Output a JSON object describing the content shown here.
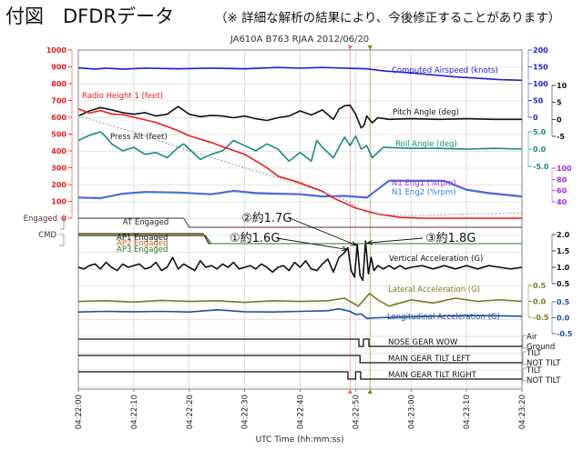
{
  "header": {
    "title": "付図　DFDRデータ",
    "note": "（※ 詳細な解析の結果により、今後修正することがあります）"
  },
  "chart_data": {
    "type": "line",
    "title": "JA610A  B763  RJAA  2012/06/20",
    "xlabel": "UTC Time (hh:mm:ss)",
    "x_range_seconds": [
      0,
      80
    ],
    "x_ticks": [
      "04:22:00",
      "04:22:10",
      "04:22:20",
      "04:22:30",
      "04:22:40",
      "04:22:50",
      "04:23:00",
      "04:23:10",
      "04:23:20"
    ],
    "grid": true,
    "event_markers": [
      {
        "name": "marker-1",
        "time_s": 49.0,
        "color": "#f07070"
      },
      {
        "name": "marker-2",
        "time_s": 52.6,
        "color": "#8a7a10"
      }
    ],
    "axes": [
      {
        "name": "radio-height-axis",
        "side": "left",
        "color": "#e81c1c",
        "range": [
          0,
          1000
        ],
        "ticks": [
          "0",
          "100",
          "200",
          "300",
          "400",
          "500",
          "600",
          "700",
          "800",
          "900",
          "1000"
        ]
      },
      {
        "name": "airspeed-axis",
        "side": "right",
        "color": "#2020d0",
        "range": [
          0,
          200
        ],
        "ticks": [
          "0",
          "50",
          "100",
          "150",
          "200"
        ]
      },
      {
        "name": "pitch-axis",
        "side": "right",
        "color": "#111111",
        "range": [
          -5,
          10
        ],
        "ticks": [
          "-5",
          "0",
          "5",
          "10"
        ]
      },
      {
        "name": "roll-axis",
        "side": "right",
        "color": "#1a8a80",
        "range": [
          -5,
          5
        ],
        "ticks": [
          "-5.0",
          "0.0",
          "5.0"
        ]
      },
      {
        "name": "n1-axis",
        "side": "right",
        "color": "#a030e0",
        "range": [
          40,
          100
        ],
        "ticks": [
          "40",
          "60",
          "80",
          "100"
        ]
      },
      {
        "name": "vertical-acc-axis",
        "side": "right",
        "color": "#111111",
        "range": [
          0.5,
          2.0
        ],
        "ticks": [
          "0.5",
          "1.0",
          "1.5",
          "2.0"
        ]
      },
      {
        "name": "lateral-acc-axis",
        "side": "right",
        "color": "#7a7a20",
        "range": [
          -0.5,
          0.5
        ],
        "ticks": [
          "-0.5",
          "0.0",
          "0.5"
        ]
      },
      {
        "name": "longitudinal-acc-axis",
        "side": "right",
        "color": "#1f4fa0",
        "range": [
          -0.5,
          0.5
        ],
        "ticks": [
          "-0.5",
          "0.0",
          "0.5"
        ]
      }
    ],
    "series": [
      {
        "name": "Computed Airspeed (knots)",
        "color": "#2020d0",
        "axis": "airspeed-axis",
        "t": [
          0,
          3,
          5,
          8,
          12,
          18,
          24,
          30,
          36,
          40,
          44,
          48,
          52,
          55,
          60,
          64,
          68,
          72,
          76,
          80
        ],
        "v": [
          147,
          143,
          146,
          143,
          146,
          144,
          146,
          144,
          148,
          146,
          148,
          146,
          144,
          138,
          132,
          126,
          120,
          116,
          112,
          110
        ]
      },
      {
        "name": "Pitch Angle (deg)",
        "color": "#111111",
        "axis": "pitch-axis",
        "t": [
          0,
          2,
          4,
          6,
          8,
          10,
          12,
          14,
          16,
          18,
          20,
          22,
          24,
          26,
          28,
          30,
          32,
          34,
          36,
          38,
          40,
          42,
          44,
          46,
          47,
          48,
          49,
          50,
          51,
          51.5,
          52,
          53,
          54,
          56,
          60,
          65,
          70,
          75,
          80
        ],
        "v": [
          1.0,
          2.5,
          3.5,
          2.8,
          2.0,
          1.5,
          2.0,
          1.0,
          1.5,
          3.8,
          1.5,
          0.8,
          1.2,
          1.0,
          0.5,
          1.0,
          0.2,
          -0.3,
          0.5,
          1.0,
          2.5,
          1.3,
          2.8,
          0.0,
          3.0,
          4.0,
          4.2,
          1.5,
          -2.5,
          -1.8,
          1.0,
          -1.0,
          0.5,
          0.0,
          0.2,
          0.0,
          0.2,
          0.0,
          0.0
        ]
      },
      {
        "name": "Roll Angle (deg)",
        "color": "#1a8a80",
        "axis": "roll-axis",
        "t": [
          0,
          2,
          4,
          5,
          6,
          8,
          10,
          12,
          14,
          16,
          18,
          19,
          20,
          22,
          24,
          26,
          28,
          30,
          32,
          34,
          36,
          38,
          40,
          42,
          43,
          44,
          46,
          47,
          48,
          49,
          50,
          51,
          52,
          53,
          55,
          60,
          65,
          70,
          75,
          80
        ],
        "v": [
          2.5,
          4.0,
          5.0,
          3.5,
          1.5,
          -0.5,
          0.5,
          -1.5,
          -1.0,
          -2.5,
          0.5,
          1.5,
          0.0,
          -3.0,
          -1.5,
          -0.5,
          2.5,
          1.0,
          -0.5,
          1.5,
          0.0,
          -3.5,
          -1.0,
          -3.5,
          2.5,
          0.5,
          -2.5,
          0.5,
          3.5,
          1.0,
          3.8,
          0.0,
          1.0,
          -2.5,
          0.5,
          0.2,
          0.2,
          0.0,
          0.2,
          0.0
        ]
      },
      {
        "name": "N1 Eng1 (%rpm)",
        "color": "#a030e0",
        "axis": "n1-axis",
        "t": [
          0,
          4,
          8,
          12,
          18,
          24,
          28,
          32,
          36,
          40,
          44,
          48,
          52,
          56,
          60,
          66,
          70,
          74,
          80
        ],
        "v": [
          48,
          47,
          55,
          58,
          57,
          54,
          60,
          56,
          55,
          54,
          50,
          51,
          48,
          78,
          78,
          78,
          62,
          56,
          50
        ]
      },
      {
        "name": "N1 Eng2 (%rpm)",
        "color": "#2f7fd8",
        "axis": "n1-axis",
        "t": [
          0,
          4,
          8,
          12,
          18,
          24,
          28,
          32,
          36,
          40,
          44,
          48,
          52,
          56,
          60,
          66,
          70,
          74,
          80
        ],
        "v": [
          47,
          46,
          54,
          57,
          56,
          53,
          59,
          55,
          54,
          53,
          49,
          50,
          47,
          77,
          77,
          77,
          61,
          55,
          49
        ]
      },
      {
        "name": "Radio Height 1 (feet)",
        "color": "#e81c1c",
        "axis": "radio-height-axis",
        "t": [
          0,
          2,
          4,
          6,
          8,
          10,
          14,
          18,
          20,
          24,
          26,
          30,
          34,
          36,
          38,
          40,
          44,
          46,
          48,
          50,
          54,
          58,
          62,
          66,
          70,
          74,
          80
        ],
        "v": [
          650,
          625,
          640,
          620,
          615,
          600,
          570,
          520,
          490,
          450,
          425,
          380,
          300,
          250,
          230,
          210,
          160,
          120,
          90,
          60,
          25,
          5,
          0,
          0,
          0,
          0,
          0
        ]
      },
      {
        "name": "Press Alt (feet)",
        "color": "#999999",
        "axis": "radio-height-axis",
        "t": [
          0,
          10,
          20,
          30,
          40,
          48,
          52,
          56,
          60,
          70,
          80
        ],
        "v": [
          610,
          510,
          400,
          300,
          200,
          110,
          30,
          20,
          15,
          25,
          30
        ]
      },
      {
        "name": "Vertical Acceleration (G)",
        "color": "#111111",
        "axis": "vertical-acc-axis",
        "t": [
          0,
          1,
          2,
          3,
          4,
          5,
          6,
          7,
          8,
          9,
          10,
          11,
          12,
          13,
          14,
          15,
          16,
          17,
          18,
          19,
          20,
          21,
          22,
          23,
          24,
          25,
          26,
          27,
          28,
          29,
          30,
          31,
          32,
          33,
          34,
          35,
          36,
          37,
          38,
          39,
          40,
          41,
          42,
          43,
          44,
          45,
          46,
          47,
          48,
          48.6,
          49.2,
          49.8,
          50.3,
          50.8,
          51.3,
          51.8,
          52.3,
          52.8,
          53.3,
          54,
          55,
          56,
          57,
          58,
          59,
          60,
          62,
          64,
          66,
          68,
          70,
          72,
          74,
          76,
          78,
          80
        ],
        "v": [
          1.0,
          0.95,
          1.05,
          1.1,
          0.95,
          1.15,
          1.0,
          0.9,
          1.1,
          1.0,
          1.05,
          1.1,
          0.95,
          1.0,
          1.15,
          0.9,
          1.0,
          1.3,
          0.95,
          1.1,
          1.0,
          0.9,
          1.2,
          1.0,
          1.05,
          0.95,
          1.1,
          1.0,
          1.15,
          0.95,
          1.0,
          1.05,
          0.95,
          1.1,
          1.0,
          0.85,
          1.0,
          1.05,
          0.9,
          1.15,
          1.0,
          1.2,
          0.95,
          0.9,
          1.1,
          1.25,
          0.85,
          1.3,
          1.45,
          1.6,
          0.9,
          0.7,
          1.7,
          0.75,
          0.6,
          1.8,
          0.8,
          1.3,
          0.9,
          1.05,
          0.95,
          1.05,
          0.95,
          1.05,
          0.95,
          1.0,
          1.05,
          0.95,
          1.05,
          0.95,
          1.05,
          0.95,
          1.05,
          1.0,
          0.95,
          1.0
        ]
      },
      {
        "name": "Lateral Acceleration (G)",
        "color": "#7a7a20",
        "axis": "lateral-acc-axis",
        "t": [
          0,
          5,
          10,
          15,
          20,
          25,
          30,
          35,
          40,
          45,
          48,
          49.5,
          50.5,
          51.5,
          52.5,
          54,
          56,
          60,
          64,
          68,
          72,
          76,
          80
        ],
        "v": [
          0.0,
          0.02,
          -0.02,
          0.03,
          0.0,
          0.02,
          -0.03,
          0.02,
          0.0,
          0.02,
          0.1,
          -0.05,
          -0.15,
          0.05,
          0.25,
          0.05,
          -0.15,
          0.05,
          -0.05,
          0.1,
          0.0,
          0.05,
          0.0
        ]
      },
      {
        "name": "Longitudinal Acceleration (G)",
        "color": "#1f4fa0",
        "axis": "longitudinal-acc-axis",
        "t": [
          0,
          5,
          10,
          15,
          20,
          25,
          30,
          35,
          40,
          45,
          47,
          49,
          50,
          51,
          52,
          54,
          58,
          64,
          70,
          76,
          80
        ],
        "v": [
          0.18,
          0.2,
          0.19,
          0.2,
          0.18,
          0.25,
          0.19,
          0.18,
          0.2,
          0.22,
          0.28,
          0.2,
          0.1,
          0.12,
          -0.02,
          0.0,
          0.02,
          0.05,
          0.07,
          0.06,
          0.05
        ]
      }
    ],
    "discrete": [
      {
        "name": "AT Engaged",
        "left_label": "Engaged",
        "color": "#7a5a5a",
        "transitions_s": [
          19.0
        ],
        "states": [
          "high",
          "low"
        ]
      },
      {
        "name": "AP1 Engaged",
        "left_label": "CMD",
        "color": "#111111",
        "transitions_s": [
          22.5
        ]
      },
      {
        "name": "AP2 Engaged",
        "color": "#c06020",
        "transitions_s": [
          22.8
        ]
      },
      {
        "name": "AP3 Engaged",
        "color": "#2a7a2a",
        "transitions_s": [
          23.0
        ]
      },
      {
        "name": "NOSE GEAR WOW",
        "right_labels": [
          "Air",
          "Ground"
        ],
        "states_t": [
          0,
          50.6,
          51.4,
          52.4
        ],
        "states_v": [
          1,
          0,
          1,
          0
        ]
      },
      {
        "name": "MAIN GEAR TILT LEFT",
        "right_labels": [
          "TILT",
          "NOT TILT"
        ],
        "states_t": [
          0,
          50.8
        ],
        "states_v": [
          1,
          0
        ]
      },
      {
        "name": "MAIN GEAR TILT RIGHT",
        "right_labels": [
          "TILT",
          "NOT TILT"
        ],
        "states_t": [
          0,
          48.6,
          50.0,
          50.9
        ],
        "states_v": [
          1,
          0,
          1,
          0
        ]
      }
    ],
    "annotations": [
      {
        "text": "①約1.6G",
        "time_s": 48.6,
        "value_g": 1.6
      },
      {
        "text": "②約1.7G",
        "time_s": 50.3,
        "value_g": 1.7
      },
      {
        "text": "③約1.8G",
        "time_s": 51.8,
        "value_g": 1.8
      }
    ]
  }
}
